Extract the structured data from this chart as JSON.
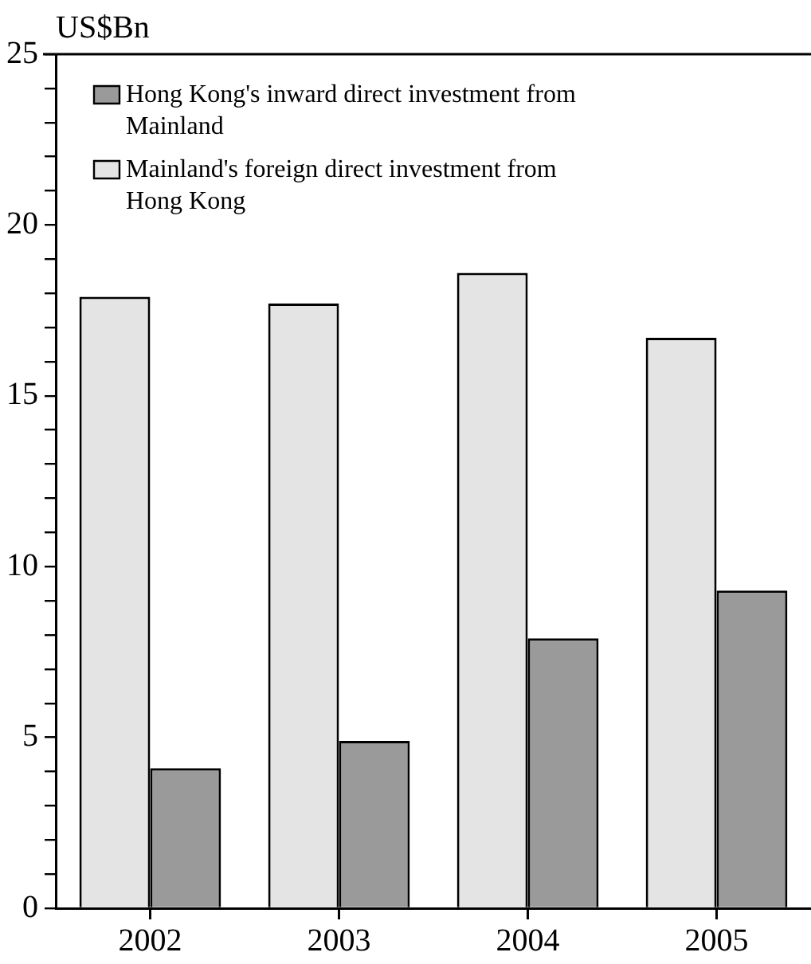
{
  "chart_data": {
    "type": "bar",
    "ylabel": "US$Bn",
    "categories": [
      "2002",
      "2003",
      "2004",
      "2005"
    ],
    "series": [
      {
        "name": "Mainland's foreign direct investment from Hong Kong",
        "color": "#e4e4e4",
        "values": [
          17.9,
          17.7,
          18.6,
          16.7
        ]
      },
      {
        "name": "Hong Kong's inward direct investment from Mainland",
        "color": "#9a9a9a",
        "values": [
          4.1,
          4.9,
          7.9,
          9.3
        ]
      }
    ],
    "ylim": [
      0,
      25
    ],
    "yticks": [
      0,
      {
        "value": 1,
        "label": null
      },
      {
        "value": 2,
        "label": null
      },
      {
        "value": 3,
        "label": null
      },
      {
        "value": 4,
        "label": null
      },
      5,
      {
        "value": 6,
        "label": null
      },
      {
        "value": 7,
        "label": null
      },
      {
        "value": 8,
        "label": null
      },
      {
        "value": 9,
        "label": null
      },
      10,
      {
        "value": 11,
        "label": null
      },
      {
        "value": 12,
        "label": null
      },
      {
        "value": 13,
        "label": null
      },
      {
        "value": 14,
        "label": null
      },
      15,
      {
        "value": 16,
        "label": null
      },
      {
        "value": 17,
        "label": null
      },
      {
        "value": 18,
        "label": null
      },
      {
        "value": 19,
        "label": null
      },
      20,
      {
        "value": 21,
        "label": null
      },
      {
        "value": 22,
        "label": null
      },
      {
        "value": 23,
        "label": null
      },
      {
        "value": 24,
        "label": null
      },
      25
    ],
    "grid": false,
    "legend": "top left"
  }
}
